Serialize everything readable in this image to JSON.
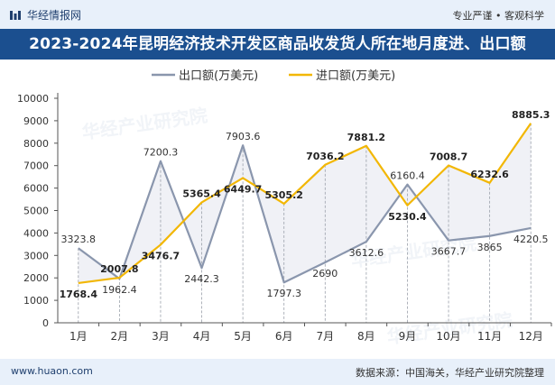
{
  "header": {
    "brand": "华经情报网",
    "tagline": "专业严谨 • 客观科学",
    "title": "2023-2024年昆明经济技术开发区商品收发货人所在地月度进、出口额"
  },
  "footer": {
    "url": "www.huaon.com",
    "source": "数据来源：中国海关，华经产业研究院整理"
  },
  "watermark": "华经产业研究院",
  "colors": {
    "export": "#8a96ad",
    "import": "#f2b705",
    "title_bg": "#1b4f8f",
    "bar_bg": "#e8f0fa"
  },
  "chart_data": {
    "type": "line",
    "categories": [
      "1月",
      "2月",
      "3月",
      "4月",
      "5月",
      "6月",
      "7月",
      "8月",
      "9月",
      "10月",
      "11月",
      "12月"
    ],
    "series": [
      {
        "name": "出口额(万美元)",
        "values": [
          3323.8,
          1962.4,
          7200.3,
          2442.3,
          7903.6,
          1797.3,
          2690,
          3612.6,
          6160.4,
          3667.7,
          3865,
          4220.5
        ]
      },
      {
        "name": "进口额(万美元)",
        "values": [
          1768.4,
          2007.8,
          3476.7,
          5365.4,
          6449.7,
          5305.2,
          7036.2,
          7881.2,
          5230.4,
          7008.7,
          6232.6,
          8885.3
        ]
      }
    ],
    "ylim": [
      0,
      10000
    ],
    "yticks": [
      0,
      1000,
      2000,
      3000,
      4000,
      5000,
      6000,
      7000,
      8000,
      9000,
      10000
    ],
    "legend_position": "top-left",
    "grid": false
  }
}
